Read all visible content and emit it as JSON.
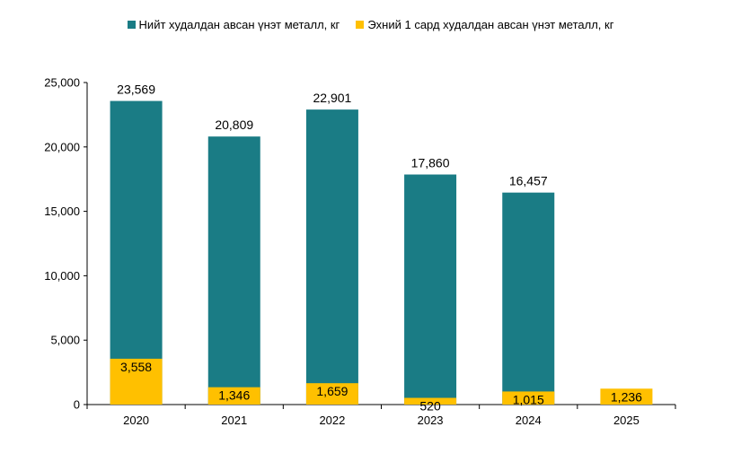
{
  "chart_data": {
    "type": "bar",
    "categories": [
      "2020",
      "2021",
      "2022",
      "2023",
      "2024",
      "2025"
    ],
    "series": [
      {
        "name": "Нийт худалдан авсан үнэт металл, кг",
        "values": [
          23569,
          20809,
          22901,
          17860,
          16457,
          null
        ],
        "labels": [
          "23,569",
          "20,809",
          "22,901",
          "17,860",
          "16,457",
          ""
        ],
        "color": "#1a7c85"
      },
      {
        "name": "Эхний 1 сард худалдан авсан үнэт металл, кг",
        "values": [
          3558,
          1346,
          1659,
          520,
          1015,
          1236
        ],
        "labels": [
          "3,558",
          "1,346",
          "1,659",
          "520",
          "1,015",
          "1,236"
        ],
        "color": "#ffc000"
      }
    ],
    "ylim": [
      0,
      25000
    ],
    "yticks": [
      0,
      5000,
      10000,
      15000,
      20000,
      25000
    ],
    "ytick_labels": [
      "0",
      "5,000",
      "10,000",
      "15,000",
      "20,000",
      "25,000"
    ],
    "grid": false,
    "legend_position": "top-center"
  }
}
